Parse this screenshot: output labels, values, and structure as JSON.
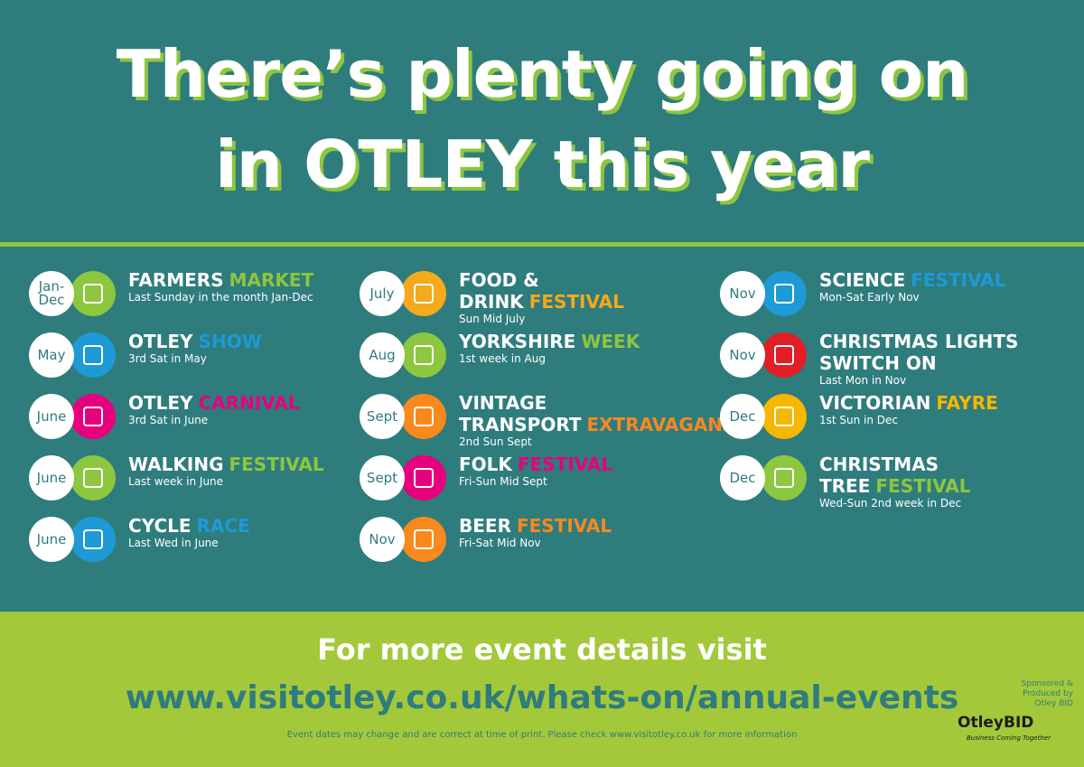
{
  "header": {
    "title_line1": "There’s plenty going on",
    "title_line2": "in OTLEY this year"
  },
  "columns": [
    [
      {
        "month": "Jan-Dec",
        "name": "FARMERS",
        "accent": "MARKET",
        "detail": "Last Sunday in the month Jan-Dec",
        "color": "#8dc63f"
      },
      {
        "month": "May",
        "name": "OTLEY",
        "accent": "SHOW",
        "detail": "3rd Sat in May",
        "color": "#1e9ad6"
      },
      {
        "month": "June",
        "name": "OTLEY",
        "accent": "CARNIVAL",
        "detail": "3rd Sat in June",
        "color": "#e6007e"
      },
      {
        "month": "June",
        "name": "WALKING",
        "accent": "FESTIVAL",
        "detail": "Last week in June",
        "color": "#8dc63f"
      },
      {
        "month": "June",
        "name": "CYCLE",
        "accent": "RACE",
        "detail": "Last Wed in June",
        "color": "#1e9ad6"
      }
    ],
    [
      {
        "month": "July",
        "name": "FOOD & DRINK",
        "accent": "FESTIVAL",
        "detail": "Sun Mid July",
        "color": "#f5a91c"
      },
      {
        "month": "Aug",
        "name": "YORKSHIRE",
        "accent": "WEEK",
        "detail": "1st week in Aug",
        "color": "#8dc63f"
      },
      {
        "month": "Sept",
        "name": "VINTAGE TRANSPORT",
        "accent": "EXTRAVAGANZA",
        "detail": "2nd Sun Sept",
        "color": "#f7891f"
      },
      {
        "month": "Sept",
        "name": "FOLK",
        "accent": "FESTIVAL",
        "detail": "Fri-Sun Mid Sept",
        "color": "#e6007e"
      },
      {
        "month": "Nov",
        "name": "BEER",
        "accent": "FESTIVAL",
        "detail": "Fri-Sat Mid Nov",
        "color": "#f7891f"
      }
    ],
    [
      {
        "month": "Nov",
        "name": "SCIENCE",
        "accent": "FESTIVAL",
        "detail": "Mon-Sat Early Nov",
        "color": "#1e9ad6"
      },
      {
        "month": "Nov",
        "name": "CHRISTMAS LIGHTS SWITCH ON",
        "detail": "Last Mon in Nov",
        "color": "#e31e24"
      },
      {
        "month": "Dec",
        "name": "VICTORIAN",
        "accent": "FAYRE",
        "detail": "1st Sun in Dec",
        "color": "#f5b800"
      },
      {
        "month": "Dec",
        "name": "CHRISTMAS TREE",
        "accent": "FESTIVAL",
        "detail": "Wed-Sun 2nd week in Dec",
        "color": "#8dc63f"
      }
    ]
  ],
  "footer": {
    "visit": "For more event details visit",
    "url": "www.visitotley.co.uk/whats-on/annual-events",
    "note": "Event dates may change and are correct at time of print. Please check www.visitotley.co.uk for more information",
    "sponsor": "Sponsored & Produced by Otley BID",
    "logo": "OtleyBID",
    "tagline": "Business Coming Together"
  }
}
